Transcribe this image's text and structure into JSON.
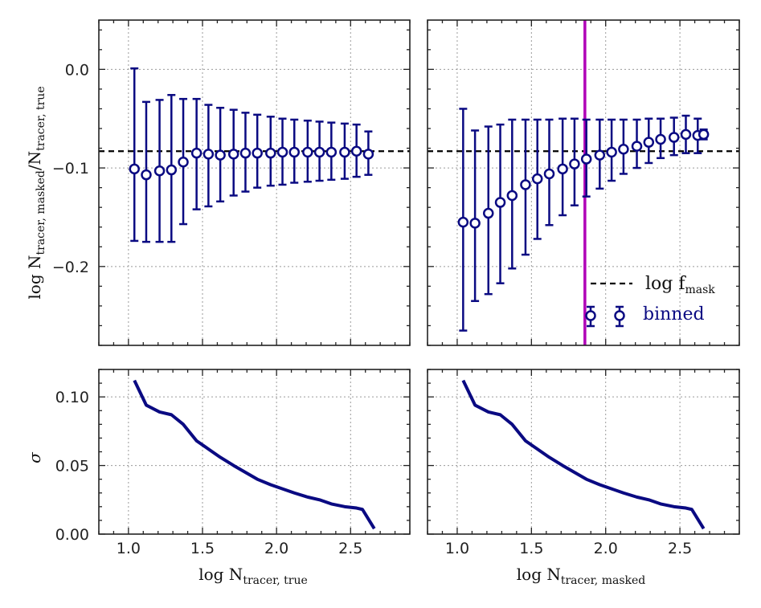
{
  "colors": {
    "series": "#0a0a82",
    "reference": "#000000",
    "threshold": "#b000b8"
  },
  "chart_data": [
    {
      "type": "scatter",
      "panel": "top-left",
      "title": "",
      "xlabel": "",
      "ylabel": "log N tracer, masked / N tracer, true",
      "xlim": [
        0.8,
        2.9
      ],
      "ylim": [
        -0.28,
        0.05
      ],
      "xticks": [
        1.0,
        1.5,
        2.0,
        2.5
      ],
      "yticks": [
        0.0,
        -0.1,
        -0.2
      ],
      "ytick_labels": [
        "0.0",
        "−0.1",
        "−0.2"
      ],
      "grid": true,
      "reference_line_y": -0.083,
      "series": [
        {
          "name": "binned",
          "x": [
            1.04,
            1.12,
            1.21,
            1.29,
            1.37,
            1.46,
            1.54,
            1.62,
            1.71,
            1.79,
            1.87,
            1.96,
            2.04,
            2.12,
            2.21,
            2.29,
            2.37,
            2.46,
            2.54,
            2.62
          ],
          "y": [
            -0.101,
            -0.107,
            -0.103,
            -0.102,
            -0.094,
            -0.085,
            -0.086,
            -0.087,
            -0.086,
            -0.085,
            -0.085,
            -0.085,
            -0.084,
            -0.084,
            -0.084,
            -0.084,
            -0.084,
            -0.084,
            -0.083,
            -0.086
          ],
          "yerr_low": [
            -0.174,
            -0.175,
            -0.175,
            -0.175,
            -0.157,
            -0.142,
            -0.139,
            -0.134,
            -0.128,
            -0.124,
            -0.12,
            -0.118,
            -0.117,
            -0.115,
            -0.114,
            -0.113,
            -0.112,
            -0.111,
            -0.109,
            -0.107
          ],
          "yerr_high": [
            0.001,
            -0.033,
            -0.031,
            -0.026,
            -0.03,
            -0.03,
            -0.036,
            -0.039,
            -0.041,
            -0.044,
            -0.046,
            -0.048,
            -0.05,
            -0.051,
            -0.052,
            -0.053,
            -0.054,
            -0.055,
            -0.056,
            -0.063
          ]
        }
      ]
    },
    {
      "type": "scatter",
      "panel": "top-right",
      "title": "",
      "xlabel": "",
      "ylabel": "",
      "xlim": [
        0.8,
        2.9
      ],
      "ylim": [
        -0.28,
        0.05
      ],
      "xticks": [
        1.0,
        1.5,
        2.0,
        2.5
      ],
      "yticks": [
        0.0,
        -0.1,
        -0.2
      ],
      "grid": true,
      "reference_line_y": -0.083,
      "vertical_line_x": 1.86,
      "legend": {
        "placement": "lower-right",
        "entries": [
          {
            "label": "log f mask",
            "style": "dashed"
          },
          {
            "label": "binned",
            "style": "errorbar"
          }
        ]
      },
      "series": [
        {
          "name": "binned",
          "x": [
            1.04,
            1.12,
            1.21,
            1.29,
            1.37,
            1.46,
            1.54,
            1.62,
            1.71,
            1.79,
            1.87,
            1.96,
            2.04,
            2.12,
            2.21,
            2.29,
            2.37,
            2.46,
            2.54,
            2.62,
            2.66
          ],
          "y": [
            -0.155,
            -0.156,
            -0.146,
            -0.135,
            -0.128,
            -0.117,
            -0.111,
            -0.106,
            -0.101,
            -0.096,
            -0.091,
            -0.087,
            -0.084,
            -0.081,
            -0.078,
            -0.074,
            -0.071,
            -0.069,
            -0.066,
            -0.067,
            -0.066
          ],
          "yerr_low": [
            -0.265,
            -0.235,
            -0.228,
            -0.217,
            -0.202,
            -0.188,
            -0.172,
            -0.158,
            -0.148,
            -0.138,
            -0.129,
            -0.121,
            -0.113,
            -0.106,
            -0.1,
            -0.095,
            -0.09,
            -0.087,
            -0.085,
            -0.085,
            -0.071
          ],
          "yerr_high": [
            -0.04,
            -0.062,
            -0.058,
            -0.056,
            -0.051,
            -0.051,
            -0.051,
            -0.051,
            -0.05,
            -0.05,
            -0.051,
            -0.051,
            -0.051,
            -0.051,
            -0.051,
            -0.05,
            -0.05,
            -0.049,
            -0.047,
            -0.05,
            -0.061
          ]
        }
      ]
    },
    {
      "type": "line",
      "panel": "bottom-left",
      "title": "",
      "xlabel": "log N tracer, true",
      "ylabel": "σ",
      "xlim": [
        0.8,
        2.9
      ],
      "ylim": [
        0.0,
        0.12
      ],
      "xticks": [
        1.0,
        1.5,
        2.0,
        2.5
      ],
      "xtick_labels": [
        "1.0",
        "1.5",
        "2.0",
        "2.5"
      ],
      "yticks": [
        0.0,
        0.05,
        0.1
      ],
      "ytick_labels": [
        "0.00",
        "0.05",
        "0.10"
      ],
      "grid": true,
      "series": [
        {
          "name": "sigma",
          "x": [
            1.04,
            1.12,
            1.21,
            1.29,
            1.37,
            1.46,
            1.54,
            1.62,
            1.71,
            1.79,
            1.87,
            1.96,
            2.04,
            2.12,
            2.21,
            2.29,
            2.37,
            2.46,
            2.54,
            2.58,
            2.66
          ],
          "y": [
            0.112,
            0.094,
            0.089,
            0.087,
            0.08,
            0.068,
            0.062,
            0.056,
            0.05,
            0.045,
            0.04,
            0.036,
            0.033,
            0.03,
            0.027,
            0.025,
            0.022,
            0.02,
            0.019,
            0.018,
            0.004
          ]
        }
      ]
    },
    {
      "type": "line",
      "panel": "bottom-right",
      "title": "",
      "xlabel": "log N tracer, masked",
      "ylabel": "",
      "xlim": [
        0.8,
        2.9
      ],
      "ylim": [
        0.0,
        0.12
      ],
      "xticks": [
        1.0,
        1.5,
        2.0,
        2.5
      ],
      "xtick_labels": [
        "1.0",
        "1.5",
        "2.0",
        "2.5"
      ],
      "yticks": [
        0.0,
        0.05,
        0.1
      ],
      "grid": true,
      "series": [
        {
          "name": "sigma",
          "x": [
            1.04,
            1.12,
            1.21,
            1.29,
            1.37,
            1.46,
            1.54,
            1.62,
            1.71,
            1.79,
            1.87,
            1.96,
            2.04,
            2.12,
            2.21,
            2.29,
            2.37,
            2.46,
            2.54,
            2.58,
            2.66
          ],
          "y": [
            0.112,
            0.094,
            0.089,
            0.087,
            0.08,
            0.068,
            0.062,
            0.056,
            0.05,
            0.045,
            0.04,
            0.036,
            0.033,
            0.03,
            0.027,
            0.025,
            0.022,
            0.02,
            0.019,
            0.018,
            0.004
          ]
        }
      ]
    }
  ],
  "labels": {
    "ylabel_top_main": "log N",
    "ylabel_top_sub1": "tracer, masked",
    "ylabel_top_slash": "/N",
    "ylabel_top_sub2": "tracer, true",
    "ylabel_bottom": "σ",
    "xlabel_left_main": "log N",
    "xlabel_left_sub": "tracer, true",
    "xlabel_right_main": "log N",
    "xlabel_right_sub": "tracer, masked",
    "legend_reference_main": "log f",
    "legend_reference_sub": "mask",
    "legend_binned": "binned"
  }
}
